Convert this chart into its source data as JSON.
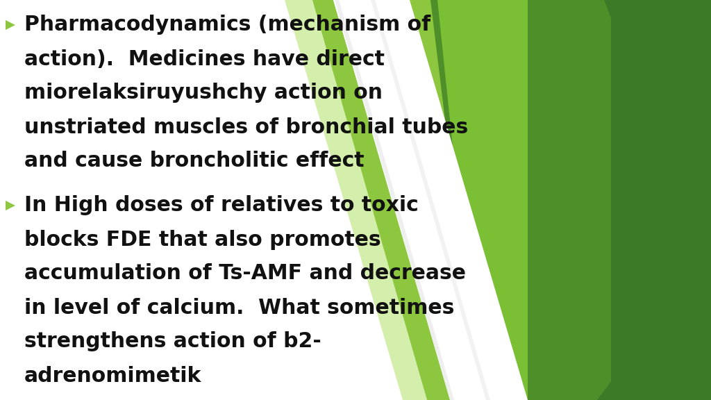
{
  "background_color": "#ffffff",
  "bullet_color": "#8dc63f",
  "text_color": "#111111",
  "bullet1_lines": [
    "Pharmacodynamics (mechanism of",
    "action).  Medicines have direct",
    "miorelaksiruyushchy action on",
    "unstriated muscles of bronchial tubes",
    "and cause broncholitic effect"
  ],
  "bullet2_lines": [
    "In High doses of relatives to toxic",
    "blocks FDE that also promotes",
    "accumulation of Ts-AMF and decrease",
    "in level of calcium.  What sometimes",
    "strengthens action of b2-",
    "adrenomimetik"
  ],
  "green_dark": "#3d7a28",
  "green_mid": "#4e8f2a",
  "green_light": "#7bbf35",
  "green_bright": "#8dc63f",
  "green_pale": "#d4eeab",
  "font_size": 21.5,
  "bullet_size": 14
}
